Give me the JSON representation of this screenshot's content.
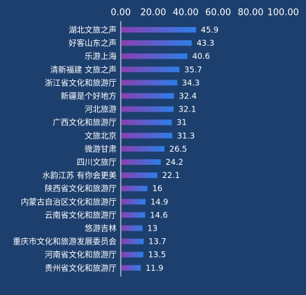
{
  "chart_data": {
    "type": "bar",
    "orientation": "horizontal",
    "title": "",
    "xlabel": "",
    "ylabel": "",
    "xlim": [
      0,
      100
    ],
    "x_ticks": [
      "0.00",
      "20.00",
      "40.00",
      "60.00",
      "80.00",
      "100.00"
    ],
    "x_axis_position": "top",
    "grid": false,
    "legend": "none",
    "categories": [
      "湖北文旅之声",
      "好客山东之声",
      "乐游上海",
      "清新福建 文旅之声",
      "浙江省文化和旅游厅",
      "新疆是个好地方",
      "河北旅游",
      "广西文化和旅游厅",
      "文旅北京",
      "微游甘肃",
      "四川文旅厅",
      "水韵江苏 有你会更美",
      "陕西省文化和旅游厅",
      "内蒙古自治区文化和旅游厅",
      "云南省文化和旅游厅",
      "悠游吉林",
      "重庆市文化和旅游发展委员会",
      "河南省文化和旅游厅",
      "贵州省文化和旅游厅"
    ],
    "values": [
      45.9,
      43.3,
      40.6,
      35.7,
      34.3,
      32.4,
      32.1,
      31,
      31.3,
      26.5,
      24.2,
      22.1,
      16,
      14.9,
      14.6,
      13,
      13.7,
      13.5,
      11.9
    ],
    "value_labels": [
      "45.9",
      "43.3",
      "40.6",
      "35.7",
      "34.3",
      "32.4",
      "32.1",
      "31",
      "31.3",
      "26.5",
      "24.2",
      "22.1",
      "16",
      "14.9",
      "14.6",
      "13",
      "13.7",
      "13.5",
      "11.9"
    ],
    "colors": {
      "background": "#1d3f6e",
      "bar_start": "#8a3fb0",
      "bar_end": "#2d7fe8",
      "axis": "#ffffff",
      "text": "#ffffff"
    }
  }
}
